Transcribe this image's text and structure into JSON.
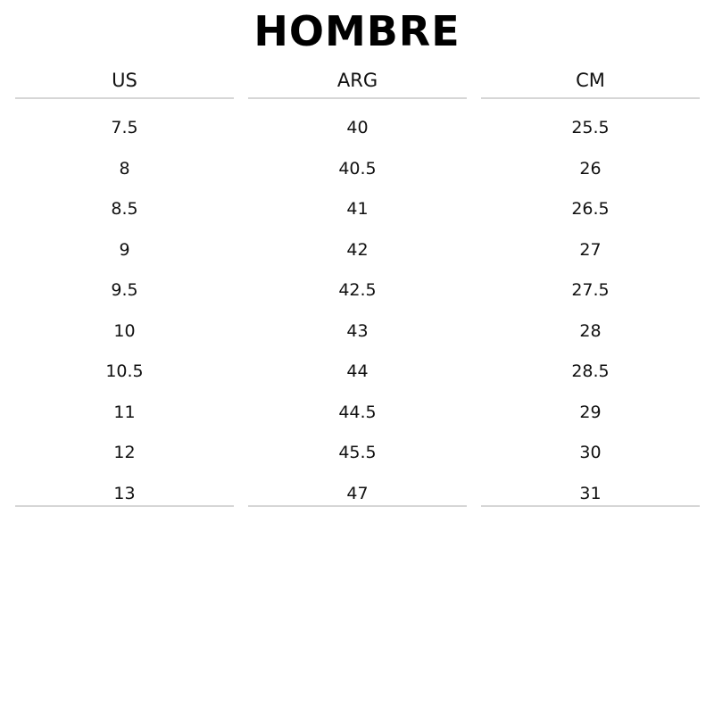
{
  "title": "HOMBRE",
  "columns": [
    {
      "header": "US",
      "values": [
        "7.5",
        "8",
        "8.5",
        "9",
        "9.5",
        "10",
        "10.5",
        "11",
        "12",
        "13"
      ]
    },
    {
      "header": "ARG",
      "values": [
        "40",
        "40.5",
        "41",
        "42",
        "42.5",
        "43",
        "44",
        "44.5",
        "45.5",
        "47"
      ]
    },
    {
      "header": "CM",
      "values": [
        "25.5",
        "26",
        "26.5",
        "27",
        "27.5",
        "28",
        "28.5",
        "29",
        "30",
        "31"
      ]
    }
  ]
}
